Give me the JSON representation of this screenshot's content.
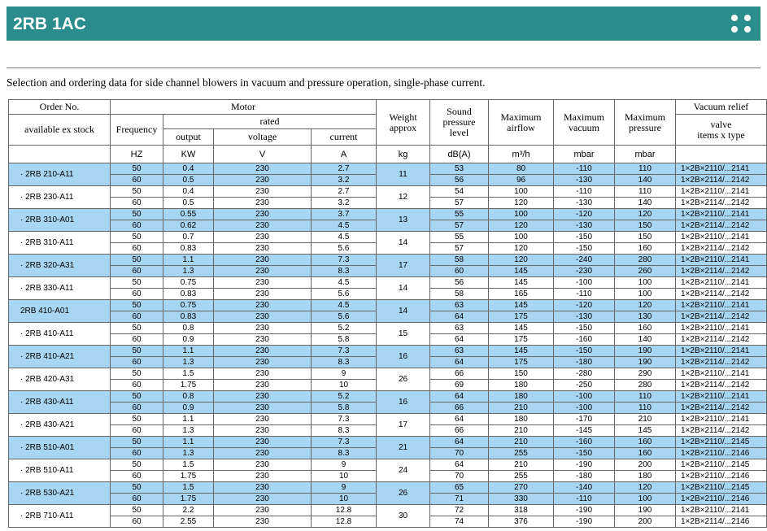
{
  "header": {
    "title": "2RB 1AC"
  },
  "caption": "Selection and ordering data for side channel blowers in vacuum and pressure operation, single-phase current.",
  "table": {
    "headers": {
      "order": [
        "Order No.",
        "available ex stock"
      ],
      "motor": "Motor",
      "frequency": "Frequency",
      "rated": "rated",
      "output": "output",
      "voltage": "voltage",
      "current": "current",
      "weight": [
        "Weight",
        "approx"
      ],
      "sound": [
        "Sound",
        "pressure",
        "level"
      ],
      "airflow": [
        "Maximum",
        "airflow"
      ],
      "vacuum": [
        "Maximum",
        "vacuum"
      ],
      "pressure": [
        "Maximum",
        "pressure"
      ],
      "relief": [
        "Vacuum relief",
        "valve",
        "items x type"
      ]
    },
    "units": [
      "",
      "HZ",
      "KW",
      "V",
      "A",
      "kg",
      "dB(A)",
      "m³/h",
      "mbar",
      "mbar",
      ""
    ],
    "rows": [
      {
        "name": "· 2RB 210-A11",
        "weight": "11",
        "sub": [
          [
            "50",
            "0.4",
            "230",
            "2.7",
            "53",
            "80",
            "-110",
            "110",
            "1×2B×2110/...2141"
          ],
          [
            "60",
            "0.5",
            "230",
            "3.2",
            "56",
            "96",
            "-130",
            "140",
            "1×2B×2114/...2142"
          ]
        ]
      },
      {
        "name": "· 2RB 230-A11",
        "weight": "12",
        "sub": [
          [
            "50",
            "0.4",
            "230",
            "2.7",
            "54",
            "100",
            "-110",
            "110",
            "1×2B×2110/...2141"
          ],
          [
            "60",
            "0.5",
            "230",
            "3.2",
            "57",
            "120",
            "-130",
            "140",
            "1×2B×2114/...2142"
          ]
        ]
      },
      {
        "name": "· 2RB 310-A01",
        "weight": "13",
        "sub": [
          [
            "50",
            "0.55",
            "230",
            "3.7",
            "55",
            "100",
            "-120",
            "120",
            "1×2B×2110/...2141"
          ],
          [
            "60",
            "0.62",
            "230",
            "4.5",
            "57",
            "120",
            "-130",
            "150",
            "1×2B×2114/...2142"
          ]
        ]
      },
      {
        "name": "· 2RB 310-A11",
        "weight": "14",
        "sub": [
          [
            "50",
            "0.7",
            "230",
            "4.5",
            "55",
            "100",
            "-150",
            "150",
            "1×2B×2110/...2141"
          ],
          [
            "60",
            "0.83",
            "230",
            "5.6",
            "57",
            "120",
            "-150",
            "160",
            "1×2B×2114/...2142"
          ]
        ]
      },
      {
        "name": "· 2RB 320-A31",
        "weight": "17",
        "sub": [
          [
            "50",
            "1.1",
            "230",
            "7.3",
            "58",
            "120",
            "-240",
            "280",
            "1×2B×2110/...2141"
          ],
          [
            "60",
            "1.3",
            "230",
            "8.3",
            "60",
            "145",
            "-230",
            "260",
            "1×2B×2114/...2142"
          ]
        ]
      },
      {
        "name": "· 2RB 330-A11",
        "weight": "14",
        "sub": [
          [
            "50",
            "0.75",
            "230",
            "4.5",
            "56",
            "145",
            "-100",
            "100",
            "1×2B×2110/...2141"
          ],
          [
            "60",
            "0.83",
            "230",
            "5.6",
            "58",
            "165",
            "-110",
            "100",
            "1×2B×2114/...2142"
          ]
        ]
      },
      {
        "name": "2RB 410-A01",
        "weight": "14",
        "sub": [
          [
            "50",
            "0.75",
            "230",
            "4.5",
            "63",
            "145",
            "-120",
            "120",
            "1×2B×2110/...2141"
          ],
          [
            "60",
            "0.83",
            "230",
            "5.6",
            "64",
            "175",
            "-130",
            "130",
            "1×2B×2114/...2142"
          ]
        ]
      },
      {
        "name": "· 2RB 410-A11",
        "weight": "15",
        "sub": [
          [
            "50",
            "0.8",
            "230",
            "5.2",
            "63",
            "145",
            "-150",
            "160",
            "1×2B×2110/...2141"
          ],
          [
            "60",
            "0.9",
            "230",
            "5.8",
            "64",
            "175",
            "-160",
            "140",
            "1×2B×2114/...2142"
          ]
        ]
      },
      {
        "name": "· 2RB 410-A21",
        "weight": "16",
        "sub": [
          [
            "50",
            "1.1",
            "230",
            "7.3",
            "63",
            "145",
            "-150",
            "190",
            "1×2B×2110/...2141"
          ],
          [
            "60",
            "1.3",
            "230",
            "8.3",
            "64",
            "175",
            "-180",
            "190",
            "1×2B×2114/...2142"
          ]
        ]
      },
      {
        "name": "· 2RB 420-A31",
        "weight": "26",
        "sub": [
          [
            "50",
            "1.5",
            "230",
            "9",
            "66",
            "150",
            "-280",
            "290",
            "1×2B×2110/...2141"
          ],
          [
            "60",
            "1.75",
            "230",
            "10",
            "69",
            "180",
            "-250",
            "280",
            "1×2B×2114/...2142"
          ]
        ]
      },
      {
        "name": "· 2RB 430-A11",
        "weight": "16",
        "sub": [
          [
            "50",
            "0.8",
            "230",
            "5.2",
            "64",
            "180",
            "-100",
            "110",
            "1×2B×2110/...2141"
          ],
          [
            "60",
            "0.9",
            "230",
            "5.8",
            "66",
            "210",
            "-100",
            "110",
            "1×2B×2114/...2142"
          ]
        ]
      },
      {
        "name": "· 2RB 430-A21",
        "weight": "17",
        "sub": [
          [
            "50",
            "1.1",
            "230",
            "7.3",
            "64",
            "180",
            "-170",
            "210",
            "1×2B×2110/...2141"
          ],
          [
            "60",
            "1.3",
            "230",
            "8.3",
            "66",
            "210",
            "-145",
            "145",
            "1×2B×2114/...2142"
          ]
        ]
      },
      {
        "name": "· 2RB 510-A01",
        "weight": "21",
        "sub": [
          [
            "50",
            "1.1",
            "230",
            "7.3",
            "64",
            "210",
            "-160",
            "160",
            "1×2B×2110/...2145"
          ],
          [
            "60",
            "1.3",
            "230",
            "8.3",
            "70",
            "255",
            "-150",
            "160",
            "1×2B×2110/...2146"
          ]
        ]
      },
      {
        "name": "· 2RB 510-A11",
        "weight": "24",
        "sub": [
          [
            "50",
            "1.5",
            "230",
            "9",
            "64",
            "210",
            "-190",
            "200",
            "1×2B×2110/...2145"
          ],
          [
            "60",
            "1.75",
            "230",
            "10",
            "70",
            "255",
            "-180",
            "180",
            "1×2B×2110/...2146"
          ]
        ]
      },
      {
        "name": "· 2RB 530-A21",
        "weight": "26",
        "sub": [
          [
            "50",
            "1.5",
            "230",
            "9",
            "65",
            "270",
            "-140",
            "120",
            "1×2B×2110/...2145"
          ],
          [
            "60",
            "1.75",
            "230",
            "10",
            "71",
            "330",
            "-110",
            "100",
            "1×2B×2110/...2146"
          ]
        ]
      },
      {
        "name": "· 2RB 710-A11",
        "weight": "30",
        "sub": [
          [
            "50",
            "2.2",
            "230",
            "12.8",
            "72",
            "318",
            "-190",
            "190",
            "1×2B×2110/...2141"
          ],
          [
            "60",
            "2.55",
            "230",
            "12.8",
            "74",
            "376",
            "-190",
            "200",
            "1×2B×2114/...2146"
          ]
        ]
      }
    ]
  }
}
